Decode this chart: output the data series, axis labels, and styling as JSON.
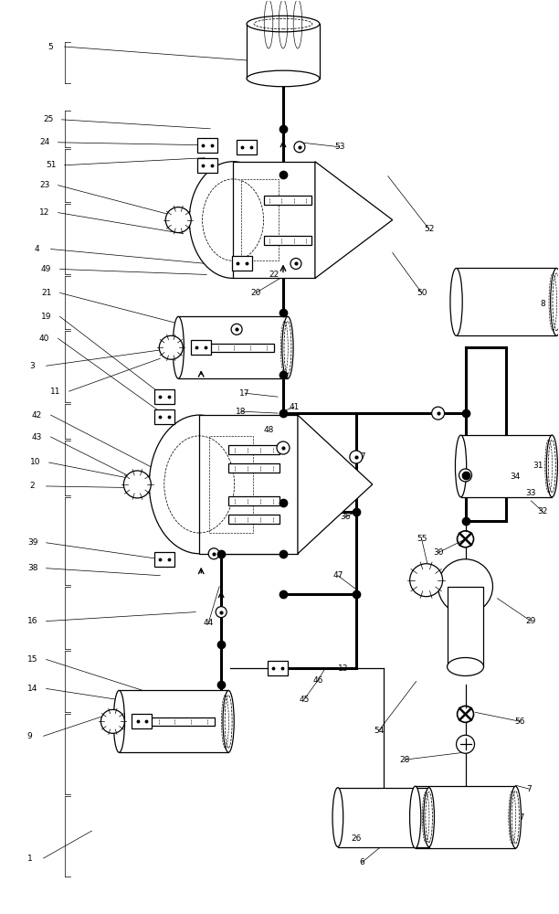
{
  "bg_color": "#ffffff",
  "line_color": "#000000",
  "fig_width": 6.12,
  "fig_height": 10.0,
  "lw_thick": 2.2,
  "lw_thin": 0.9,
  "lw_med": 1.4,
  "fs_label": 6.5
}
